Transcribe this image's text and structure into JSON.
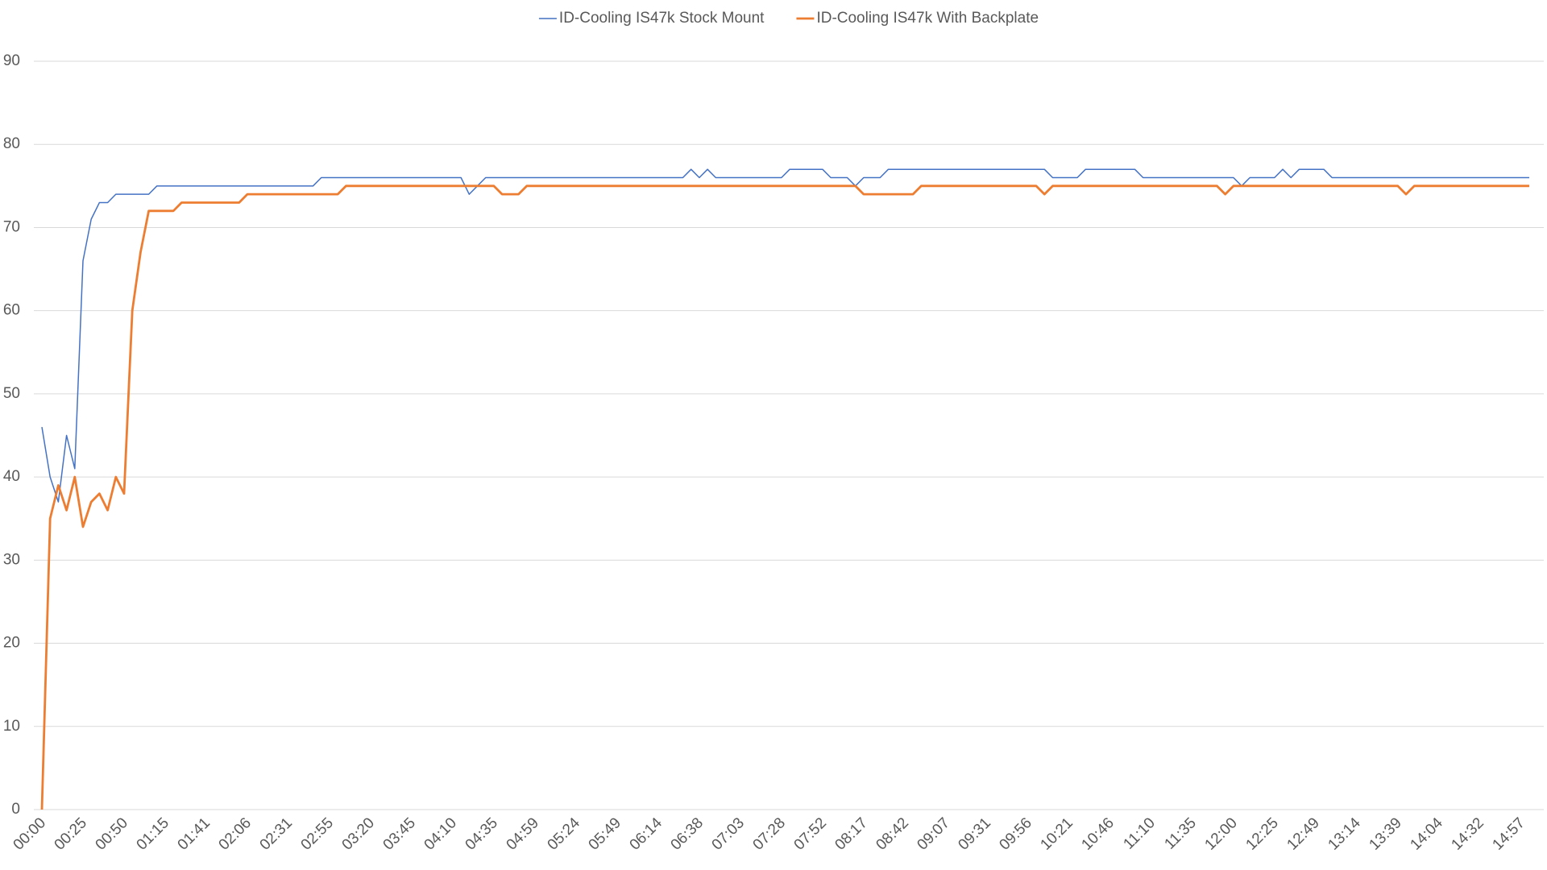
{
  "chart_data": {
    "type": "line",
    "categories": [
      "00:00",
      null,
      null,
      null,
      null,
      "00:25",
      null,
      null,
      null,
      null,
      "00:50",
      null,
      null,
      null,
      null,
      "01:15",
      null,
      null,
      null,
      null,
      "01:41",
      null,
      null,
      null,
      null,
      "02:06",
      null,
      null,
      null,
      null,
      "02:31",
      null,
      null,
      null,
      null,
      "02:55",
      null,
      null,
      null,
      null,
      "03:20",
      null,
      null,
      null,
      null,
      "03:45",
      null,
      null,
      null,
      null,
      "04:10",
      null,
      null,
      null,
      null,
      "04:35",
      null,
      null,
      null,
      null,
      "04:59",
      null,
      null,
      null,
      null,
      "05:24",
      null,
      null,
      null,
      null,
      "05:49",
      null,
      null,
      null,
      null,
      "06:14",
      null,
      null,
      null,
      null,
      "06:38",
      null,
      null,
      null,
      null,
      "07:03",
      null,
      null,
      null,
      null,
      "07:28",
      null,
      null,
      null,
      null,
      "07:52",
      null,
      null,
      null,
      null,
      "08:17",
      null,
      null,
      null,
      null,
      "08:42",
      null,
      null,
      null,
      null,
      "09:07",
      null,
      null,
      null,
      null,
      "09:31",
      null,
      null,
      null,
      null,
      "09:56",
      null,
      null,
      null,
      null,
      "10:21",
      null,
      null,
      null,
      null,
      "10:46",
      null,
      null,
      null,
      null,
      "11:10",
      null,
      null,
      null,
      null,
      "11:35",
      null,
      null,
      null,
      null,
      "12:00",
      null,
      null,
      null,
      null,
      "12:25",
      null,
      null,
      null,
      null,
      "12:49",
      null,
      null,
      null,
      null,
      "13:14",
      null,
      null,
      null,
      null,
      "13:39",
      null,
      null,
      null,
      null,
      "14:04",
      null,
      null,
      null,
      null,
      "14:32",
      null,
      null,
      null,
      null,
      "14:57",
      null
    ],
    "series": [
      {
        "name": "ID-Cooling IS47k Stock Mount",
        "color": "#4472c4",
        "values": [
          46,
          40,
          37,
          45,
          41,
          66,
          71,
          73,
          73,
          74,
          74,
          74,
          74,
          74,
          75,
          75,
          75,
          75,
          75,
          75,
          75,
          75,
          75,
          75,
          75,
          75,
          75,
          75,
          75,
          75,
          75,
          75,
          75,
          75,
          76,
          76,
          76,
          76,
          76,
          76,
          76,
          76,
          76,
          76,
          76,
          76,
          76,
          76,
          76,
          76,
          76,
          76,
          74,
          75,
          76,
          76,
          76,
          76,
          76,
          76,
          76,
          76,
          76,
          76,
          76,
          76,
          76,
          76,
          76,
          76,
          76,
          76,
          76,
          76,
          76,
          76,
          76,
          76,
          76,
          77,
          76,
          77,
          76,
          76,
          76,
          76,
          76,
          76,
          76,
          76,
          76,
          77,
          77,
          77,
          77,
          77,
          76,
          76,
          76,
          75,
          76,
          76,
          76,
          77,
          77,
          77,
          77,
          77,
          77,
          77,
          77,
          77,
          77,
          77,
          77,
          77,
          77,
          77,
          77,
          77,
          77,
          77,
          77,
          76,
          76,
          76,
          76,
          77,
          77,
          77,
          77,
          77,
          77,
          77,
          76,
          76,
          76,
          76,
          76,
          76,
          76,
          76,
          76,
          76,
          76,
          76,
          75,
          76,
          76,
          76,
          76,
          77,
          76,
          77,
          77,
          77,
          77,
          76,
          76,
          76,
          76,
          76,
          76,
          76,
          76,
          76,
          76,
          76,
          76,
          76,
          76,
          76,
          76,
          76,
          76,
          76,
          76,
          76,
          76,
          76,
          76,
          76
        ]
      },
      {
        "name": "ID-Cooling IS47k With Backplate",
        "color": "#ed7d31",
        "values": [
          0,
          35,
          39,
          36,
          40,
          34,
          37,
          38,
          36,
          40,
          38,
          60,
          67,
          72,
          72,
          72,
          72,
          73,
          73,
          73,
          73,
          73,
          73,
          73,
          73,
          74,
          74,
          74,
          74,
          74,
          74,
          74,
          74,
          74,
          74,
          74,
          74,
          75,
          75,
          75,
          75,
          75,
          75,
          75,
          75,
          75,
          75,
          75,
          75,
          75,
          75,
          75,
          75,
          75,
          75,
          75,
          74,
          74,
          74,
          75,
          75,
          75,
          75,
          75,
          75,
          75,
          75,
          75,
          75,
          75,
          75,
          75,
          75,
          75,
          75,
          75,
          75,
          75,
          75,
          75,
          75,
          75,
          75,
          75,
          75,
          75,
          75,
          75,
          75,
          75,
          75,
          75,
          75,
          75,
          75,
          75,
          75,
          75,
          75,
          75,
          74,
          74,
          74,
          74,
          74,
          74,
          74,
          75,
          75,
          75,
          75,
          75,
          75,
          75,
          75,
          75,
          75,
          75,
          75,
          75,
          75,
          75,
          74,
          75,
          75,
          75,
          75,
          75,
          75,
          75,
          75,
          75,
          75,
          75,
          75,
          75,
          75,
          75,
          75,
          75,
          75,
          75,
          75,
          75,
          74,
          75,
          75,
          75,
          75,
          75,
          75,
          75,
          75,
          75,
          75,
          75,
          75,
          75,
          75,
          75,
          75,
          75,
          75,
          75,
          75,
          75,
          74,
          75,
          75,
          75,
          75,
          75,
          75,
          75,
          75,
          75,
          75,
          75,
          75,
          75,
          75,
          75
        ]
      }
    ],
    "ylim": [
      0,
      90
    ],
    "yticks": [
      0,
      10,
      20,
      30,
      40,
      50,
      60,
      70,
      80,
      90
    ],
    "grid": true,
    "legend": "top"
  }
}
